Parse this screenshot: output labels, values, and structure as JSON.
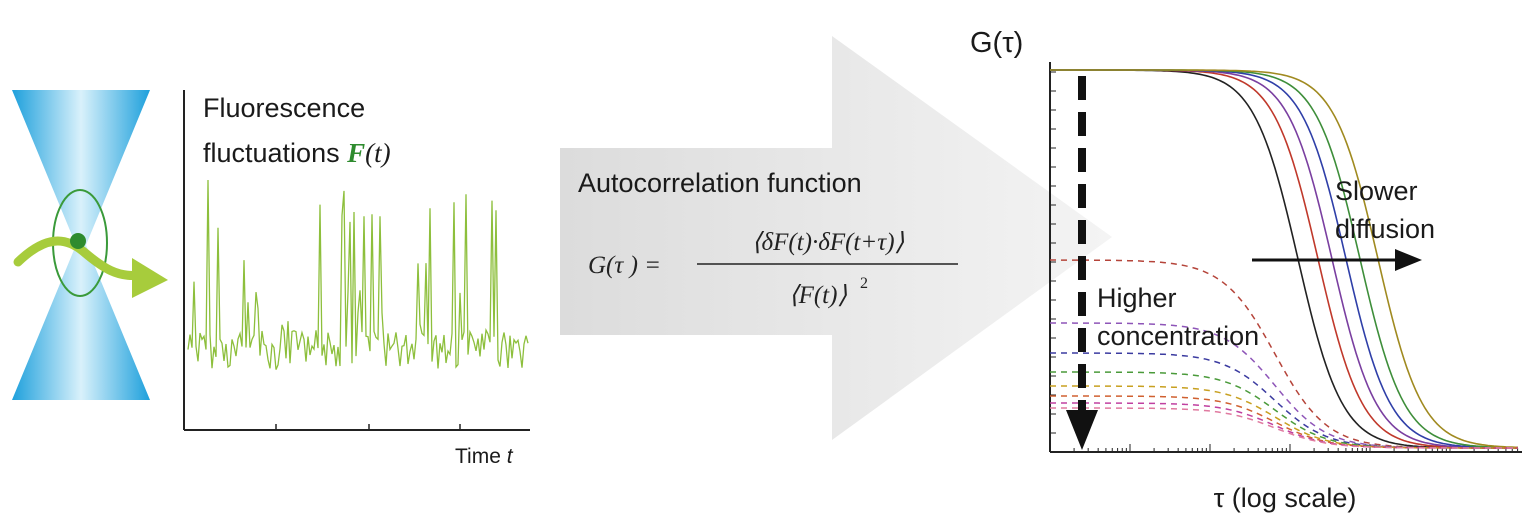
{
  "trace_panel": {
    "title_line1": "Fluorescence",
    "title_line2_prefix": "fluctuations ",
    "title_F": "F",
    "title_t": "(t)",
    "x_label_prefix": "Time ",
    "x_label_t": "t"
  },
  "arrow_panel": {
    "title": "Autocorrelation function",
    "formula_lhs": "G(τ ) =",
    "formula_numerator": "⟨δF(t)·δF(t+τ)⟩",
    "formula_denominator": "⟨F(t)⟩",
    "formula_power": "2"
  },
  "correlation_panel": {
    "y_label": "G(τ)",
    "x_label": "τ (log scale)",
    "annotation_slower_line1": "Slower",
    "annotation_slower_line2": "diffusion",
    "annotation_higher_line1": "Higher",
    "annotation_higher_line2": "concentration"
  },
  "colors": {
    "trace_green": "#8dbf3c",
    "arrow_gray": "#e6e6e6",
    "beam_blue": "#1ea0dc",
    "curve_colors": [
      "#222222",
      "#c0392b",
      "#7a3fa0",
      "#2f3fa8",
      "#3e8e3a",
      "#a08a20"
    ],
    "dashed_colors": [
      "#b5443a",
      "#8e55b8",
      "#3b3ba0",
      "#4a9a3a",
      "#c8a020",
      "#d06030",
      "#c040a0",
      "#e07aa0"
    ]
  }
}
